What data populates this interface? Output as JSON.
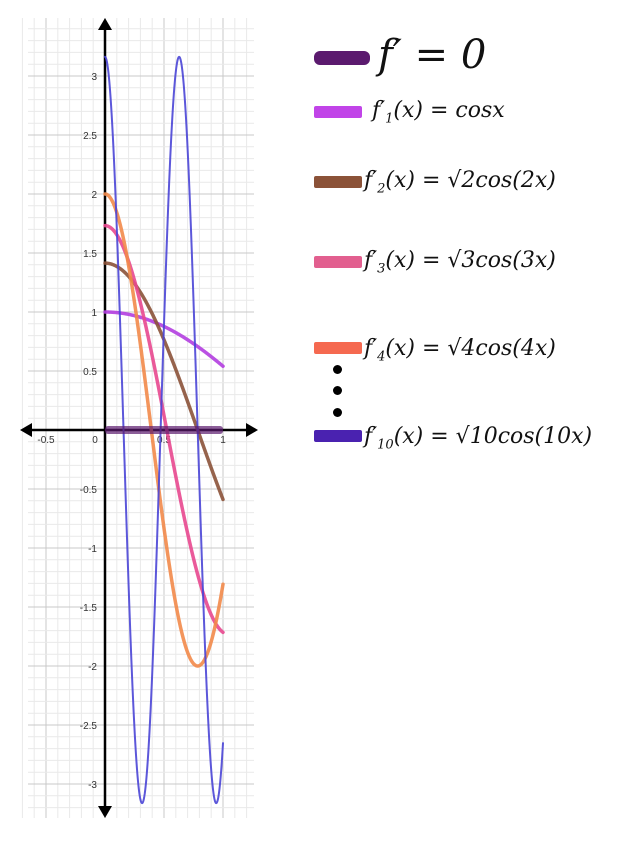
{
  "chart_data": {
    "type": "line",
    "xlim": [
      -0.7,
      1.3
    ],
    "ylim": [
      -3.3,
      3.4
    ],
    "x_tick_labels": [
      "-0.5",
      "0",
      "0.5",
      "1"
    ],
    "y_tick_labels": [
      "3",
      "2.5",
      "2",
      "1.5",
      "1",
      "0.5",
      "-0.5",
      "-1",
      "-1.5",
      "-2",
      "-2.5",
      "-3"
    ],
    "x_tick_values": [
      -0.5,
      0,
      0.5,
      1
    ],
    "y_tick_values": [
      3,
      2.5,
      2,
      1.5,
      1,
      0.5,
      -0.5,
      -1,
      -1.5,
      -2,
      -2.5,
      -3
    ],
    "grid": true,
    "legend_placement": "right",
    "zero_marker": {
      "label": "f′ = 0",
      "color": "#5b1a6e",
      "x_range": [
        0,
        1
      ]
    },
    "series": [
      {
        "name": "f′₁(x) = cosx",
        "n": 1,
        "color": "#b23ee0"
      },
      {
        "name": "f′₂(x) = √2cos(2x)",
        "n": 2,
        "color": "#8b5238"
      },
      {
        "name": "f′₃(x) = √3cos(3x)",
        "n": 3,
        "color": "#e8488f"
      },
      {
        "name": "f′₄(x) = √4cos(4x)",
        "n": 4,
        "color": "#f28a4a"
      },
      {
        "name": "f′₁₀(x) = √10cos(10x)",
        "n": 10,
        "color": "#4a45d6"
      }
    ],
    "x_domain": [
      0,
      1
    ]
  },
  "legend": {
    "zero": {
      "text": "f′ = 0",
      "color": "#5b1a6e"
    },
    "items": [
      {
        "label_pre": "f′",
        "sub": "1",
        "label_post": "(x) = cosx",
        "color": "#c144e8"
      },
      {
        "label_pre": "f′",
        "sub": "2",
        "label_post": "(x) = √2cos(2x)",
        "color": "#8b5238"
      },
      {
        "label_pre": "f′",
        "sub": "3",
        "label_post": "(x) = √3cos(3x)",
        "color": "#e25f8f"
      },
      {
        "label_pre": "f′",
        "sub": "4",
        "label_post": "(x) = √4cos(4x)",
        "color": "#f56950"
      },
      {
        "label_pre": "f′",
        "sub": "10",
        "label_post": "(x) = √10cos(10x)",
        "color": "#4a22b0"
      }
    ]
  }
}
